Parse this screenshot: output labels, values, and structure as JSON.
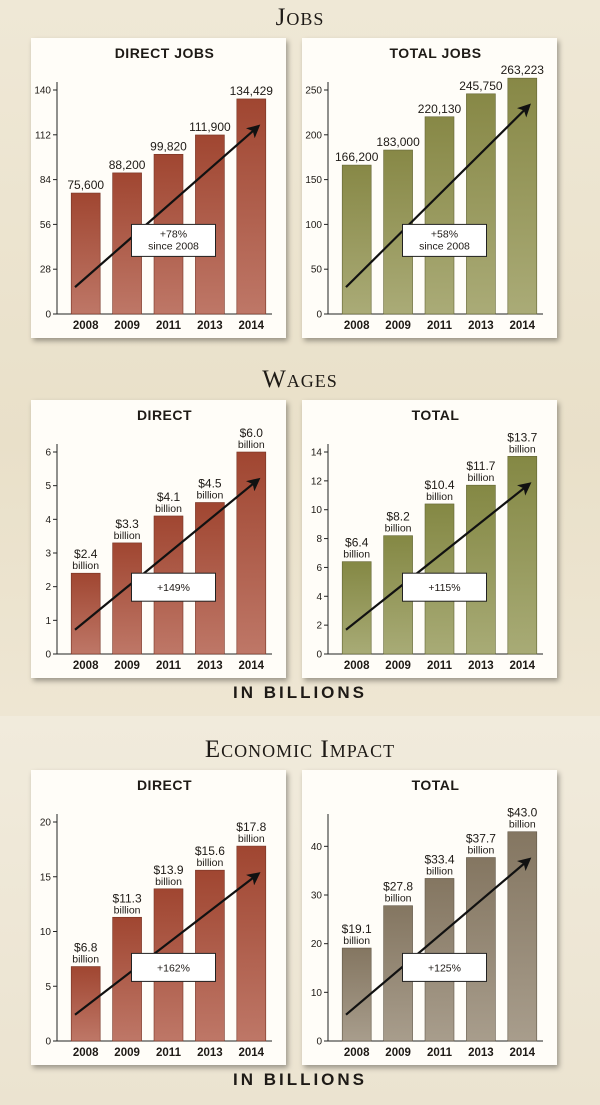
{
  "sections": {
    "jobs": {
      "title": "Jobs"
    },
    "wages": {
      "title": "Wages",
      "unit": "IN BILLIONS"
    },
    "impact": {
      "title": "Economic Impact",
      "unit": "IN BILLIONS"
    }
  },
  "colors": {
    "direct_bar": "#a84a34",
    "total_jobs_bar": "#8e8f4a",
    "total_wages_bar": "#8b8f48",
    "total_impact_bar": "#8b7c66"
  },
  "chart_data": [
    {
      "id": "direct_jobs",
      "type": "bar",
      "title": "DIRECT JOBS",
      "categories": [
        "2008",
        "2009",
        "2011",
        "2013",
        "2014"
      ],
      "values": [
        75600,
        88200,
        99820,
        111900,
        134429
      ],
      "value_labels": [
        [
          "75,600"
        ],
        [
          "88,200"
        ],
        [
          "99,820"
        ],
        [
          "111,900"
        ],
        [
          "134,429"
        ]
      ],
      "ylim": [
        0,
        140
      ],
      "yscale": 1000,
      "yticks": [
        0,
        28,
        56,
        84,
        112,
        140
      ],
      "annotation": [
        "+78%",
        "since 2008"
      ],
      "color": "#a84a34"
    },
    {
      "id": "total_jobs",
      "type": "bar",
      "title": "TOTAL JOBS",
      "categories": [
        "2008",
        "2009",
        "2011",
        "2013",
        "2014"
      ],
      "values": [
        166200,
        183000,
        220130,
        245750,
        263223
      ],
      "value_labels": [
        [
          "166,200"
        ],
        [
          "183,000"
        ],
        [
          "220,130"
        ],
        [
          "245,750"
        ],
        [
          "263,223"
        ]
      ],
      "ylim": [
        0,
        250
      ],
      "yscale": 1000,
      "yticks": [
        0,
        50,
        100,
        150,
        200,
        250
      ],
      "annotation": [
        "+58%",
        "since 2008"
      ],
      "color": "#8e8f4a"
    },
    {
      "id": "direct_wages",
      "type": "bar",
      "title": "DIRECT",
      "categories": [
        "2008",
        "2009",
        "2011",
        "2013",
        "2014"
      ],
      "values": [
        2.4,
        3.3,
        4.1,
        4.5,
        6.0
      ],
      "value_labels": [
        [
          "$2.4",
          "billion"
        ],
        [
          "$3.3",
          "billion"
        ],
        [
          "$4.1",
          "billion"
        ],
        [
          "$4.5",
          "billion"
        ],
        [
          "$6.0",
          "billion"
        ]
      ],
      "ylim": [
        0,
        6
      ],
      "yscale": 1,
      "yticks": [
        0,
        1,
        2,
        3,
        4,
        5,
        6
      ],
      "annotation": [
        "+149%"
      ],
      "color": "#a84a34"
    },
    {
      "id": "total_wages",
      "type": "bar",
      "title": "TOTAL",
      "categories": [
        "2008",
        "2009",
        "2011",
        "2013",
        "2014"
      ],
      "values": [
        6.4,
        8.2,
        10.4,
        11.7,
        13.7
      ],
      "value_labels": [
        [
          "$6.4",
          "billion"
        ],
        [
          "$8.2",
          "billion"
        ],
        [
          "$10.4",
          "billion"
        ],
        [
          "$11.7",
          "billion"
        ],
        [
          "$13.7",
          "billion"
        ]
      ],
      "ylim": [
        0,
        14
      ],
      "yscale": 1,
      "yticks": [
        0,
        2,
        4,
        6,
        8,
        10,
        12,
        14
      ],
      "annotation": [
        "+115%"
      ],
      "color": "#8b8f48"
    },
    {
      "id": "direct_impact",
      "type": "bar",
      "title": "DIRECT",
      "categories": [
        "2008",
        "2009",
        "2011",
        "2013",
        "2014"
      ],
      "values": [
        6.8,
        11.3,
        13.9,
        15.6,
        17.8
      ],
      "value_labels": [
        [
          "$6.8",
          "billion"
        ],
        [
          "$11.3",
          "billion"
        ],
        [
          "$13.9",
          "billion"
        ],
        [
          "$15.6",
          "billion"
        ],
        [
          "$17.8",
          "billion"
        ]
      ],
      "ylim": [
        0,
        20
      ],
      "yscale": 1,
      "yticks": [
        0,
        5,
        10,
        15,
        20
      ],
      "annotation": [
        "+162%"
      ],
      "color": "#a84a34"
    },
    {
      "id": "total_impact",
      "type": "bar",
      "title": "TOTAL",
      "categories": [
        "2008",
        "2009",
        "2011",
        "2013",
        "2014"
      ],
      "values": [
        19.1,
        27.8,
        33.4,
        37.7,
        43.0
      ],
      "value_labels": [
        [
          "$19.1",
          "billion"
        ],
        [
          "$27.8",
          "billion"
        ],
        [
          "$33.4",
          "billion"
        ],
        [
          "$37.7",
          "billion"
        ],
        [
          "$43.0",
          "billion"
        ]
      ],
      "ylim": [
        0,
        45
      ],
      "yscale": 1,
      "yticks": [
        0,
        10,
        20,
        30,
        40
      ],
      "annotation": [
        "+125%"
      ],
      "color": "#8b7c66"
    }
  ]
}
